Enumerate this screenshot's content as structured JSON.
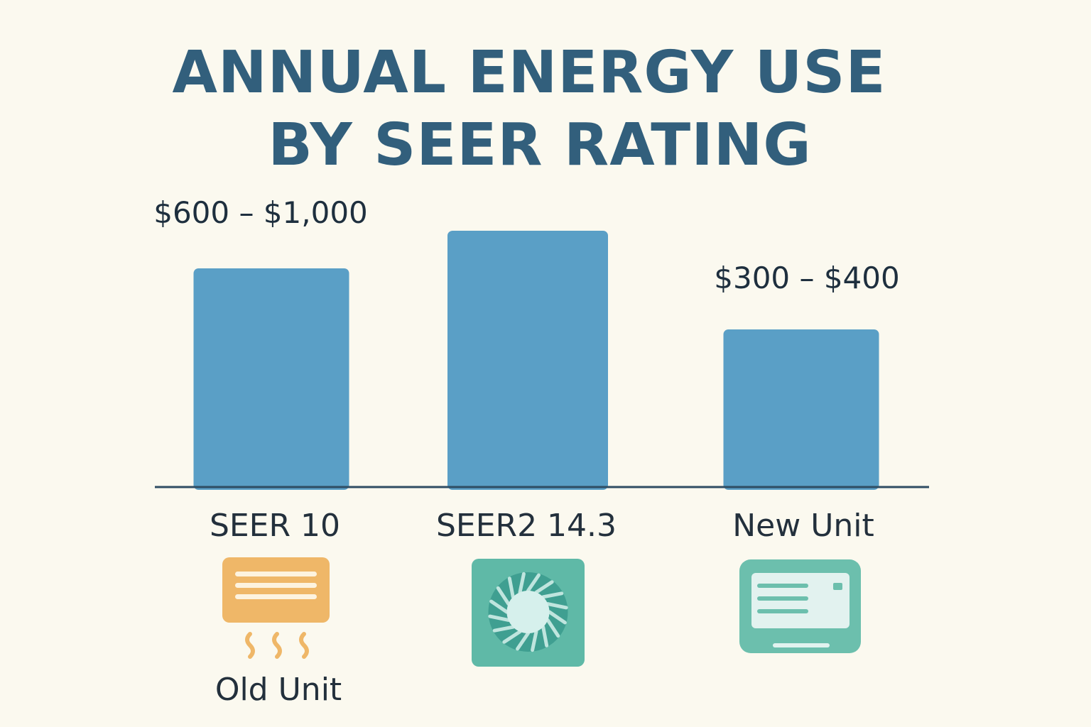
{
  "colors": {
    "background": "#fbf9ef",
    "title": "#325f7c",
    "bar": "#5a9fc6",
    "axis": "#2f4d63",
    "text": "#23303c",
    "old_unit_icon": "#efb768",
    "seer2_icon": "#5fb9a7",
    "new_unit_icon": "#6cbfad"
  },
  "chart_data": {
    "type": "bar",
    "title_lines": [
      "ANNUAL ENERGY USE",
      "BY SEER RATING"
    ],
    "categories": [
      "SEER 10",
      "SEER2 14.3",
      "New Unit"
    ],
    "values": [
      308,
      361,
      222
    ],
    "value_labels": [
      "$600 – $1,000",
      "",
      "$300 – $400"
    ],
    "ylim": [
      0,
      400
    ],
    "grid": false,
    "legend": "none"
  },
  "icons": [
    {
      "name": "old-unit-heater-icon",
      "label": "Old Unit"
    },
    {
      "name": "fan-condenser-icon",
      "label": ""
    },
    {
      "name": "new-ac-unit-icon",
      "label": ""
    }
  ]
}
